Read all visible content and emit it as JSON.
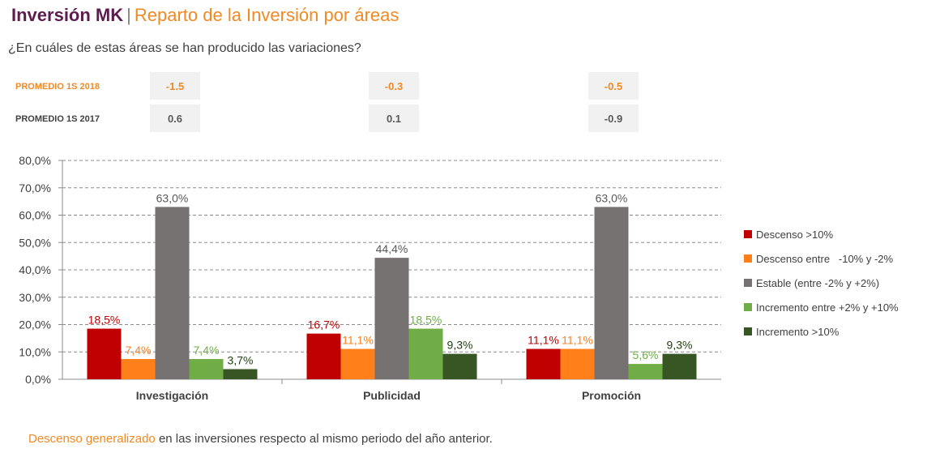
{
  "header": {
    "title": "Inversión MK",
    "separator": "|",
    "subtitle": "Reparto de la Inversión por áreas"
  },
  "question": "¿En cuáles de estas áreas se han producido las variaciones?",
  "summary": {
    "row_2018_label": "PROMEDIO 1S 2018",
    "row_2017_label": "PROMEDIO 1S 2017",
    "values_2018": [
      "-1.5",
      "-0.3",
      "-0.5"
    ],
    "values_2017": [
      "0.6",
      "0.1",
      "-0.9"
    ]
  },
  "chart_data": {
    "type": "bar",
    "categories": [
      "Investigación",
      "Publicidad",
      "Promoción"
    ],
    "series": [
      {
        "name": "Descenso >10%",
        "color": "#c00000",
        "values": [
          18.5,
          16.7,
          11.1
        ],
        "labels": [
          "18,5%",
          "16,7%",
          "11,1%"
        ]
      },
      {
        "name": "Descenso entre   -10% y -2%",
        "color": "#ff7f1a",
        "values": [
          7.4,
          11.1,
          11.1
        ],
        "labels": [
          "7,4%",
          "11,1%",
          "11,1%"
        ]
      },
      {
        "name": "Estable (entre -2% y +2%)",
        "color": "#767171",
        "values": [
          63.0,
          44.4,
          63.0
        ],
        "labels": [
          "63,0%",
          "44,4%",
          "63,0%"
        ]
      },
      {
        "name": "Incremento entre +2% y +10%",
        "color": "#70ad47",
        "values": [
          7.4,
          18.5,
          5.6
        ],
        "labels": [
          "7,4%",
          "18,5%",
          "5,6%"
        ]
      },
      {
        "name": "Incremento >10%",
        "color": "#375623",
        "values": [
          3.7,
          9.3,
          9.3
        ],
        "labels": [
          "3,7%",
          "9,3%",
          "9,3%"
        ]
      }
    ],
    "label_colors": [
      "#c00000",
      "#ff7f1a",
      "#595959",
      "#70ad47",
      "#1f3d10"
    ],
    "ylim": [
      0,
      80
    ],
    "yticks": [
      "0,0%",
      "10,0%",
      "20,0%",
      "30,0%",
      "40,0%",
      "50,0%",
      "60,0%",
      "70,0%",
      "80,0%"
    ],
    "grid": true,
    "legend_position": "right"
  },
  "footer": {
    "highlight": "Descenso generalizado",
    "rest": " en las inversiones respecto al mismo periodo del año anterior."
  }
}
